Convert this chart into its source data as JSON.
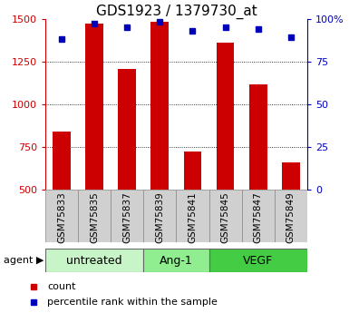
{
  "title": "GDS1923 / 1379730_at",
  "samples": [
    "GSM75833",
    "GSM75835",
    "GSM75837",
    "GSM75839",
    "GSM75841",
    "GSM75845",
    "GSM75847",
    "GSM75849"
  ],
  "counts": [
    840,
    1470,
    1205,
    1480,
    720,
    1360,
    1115,
    660
  ],
  "percentile_ranks": [
    88,
    97,
    95,
    98,
    93,
    95,
    94,
    89
  ],
  "groups": [
    {
      "label": "untreated",
      "start": 0,
      "end": 3,
      "color": "#c8f5c8"
    },
    {
      "label": "Ang-1",
      "start": 3,
      "end": 5,
      "color": "#90ee90"
    },
    {
      "label": "VEGF",
      "start": 5,
      "end": 8,
      "color": "#44cc44"
    }
  ],
  "ylim_left": [
    500,
    1500
  ],
  "ylim_right": [
    0,
    100
  ],
  "yticks_left": [
    500,
    750,
    1000,
    1250,
    1500
  ],
  "yticks_right": [
    0,
    25,
    50,
    75,
    100
  ],
  "ytick_labels_right": [
    "0",
    "25",
    "50",
    "75",
    "100%"
  ],
  "bar_color": "#cc0000",
  "marker_color": "#0000bb",
  "bar_width": 0.55,
  "legend_count_label": "count",
  "legend_pct_label": "percentile rank within the sample",
  "title_fontsize": 11,
  "tick_fontsize": 8,
  "sample_fontsize": 7.5,
  "group_fontsize": 9,
  "legend_fontsize": 8
}
